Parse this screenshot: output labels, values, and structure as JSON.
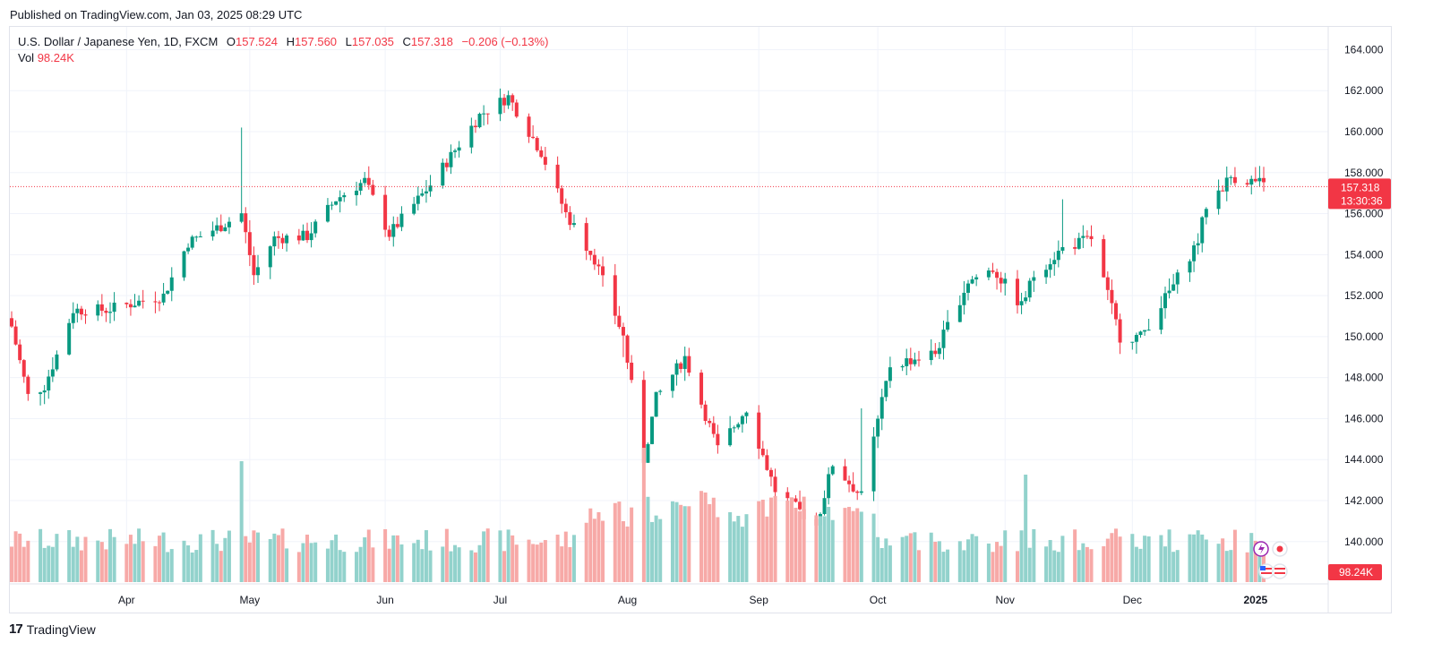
{
  "header": {
    "published": "Published on TradingView.com, Jan 03, 2025 08:29 UTC"
  },
  "legend": {
    "symbol": "U.S. Dollar / Japanese Yen, 1D, FXCM",
    "open_label": "O",
    "open": "157.524",
    "high_label": "H",
    "high": "157.560",
    "low_label": "L",
    "low": "157.035",
    "close_label": "C",
    "close": "157.318",
    "change": "−0.206 (−0.13%)",
    "vol_label": "Vol",
    "vol": "98.24K"
  },
  "last_price": {
    "value": "157.318",
    "countdown": "13:30:36",
    "color": "#f23645"
  },
  "volume_badge": {
    "value": "98.24K",
    "color": "#f23645"
  },
  "footer": {
    "brand": "TradingView",
    "logo_mark": "17"
  },
  "colors": {
    "up": "#089981",
    "down": "#f23645",
    "vol_up": "#92d2cc",
    "vol_down": "#f7a9a7",
    "grid": "#f0f3fa",
    "axis_text": "#131722"
  },
  "chart_data": {
    "type": "candlestick",
    "title": "U.S. Dollar / Japanese Yen, 1D, FXCM",
    "y_ticks": [
      140,
      142,
      144,
      146,
      148,
      150,
      152,
      154,
      156,
      158,
      160,
      162,
      164
    ],
    "y_tick_labels": [
      "140.000",
      "142.000",
      "144.000",
      "146.000",
      "148.000",
      "150.000",
      "152.000",
      "154.000",
      "156.000",
      "158.000",
      "160.000",
      "162.000",
      "164.000"
    ],
    "ylim": [
      137.5,
      164.5
    ],
    "x_ticks": [
      {
        "label": "Apr",
        "date": "2024-04-01"
      },
      {
        "label": "May",
        "date": "2024-05-01"
      },
      {
        "label": "Jun",
        "date": "2024-06-03"
      },
      {
        "label": "Jul",
        "date": "2024-07-01"
      },
      {
        "label": "Aug",
        "date": "2024-08-01"
      },
      {
        "label": "Sep",
        "date": "2024-09-02"
      },
      {
        "label": "Oct",
        "date": "2024-10-01"
      },
      {
        "label": "Nov",
        "date": "2024-11-01"
      },
      {
        "label": "Dec",
        "date": "2024-12-02"
      },
      {
        "label": "2025",
        "date": "2025-01-01"
      }
    ],
    "date_range": [
      "2024-03-04",
      "2025-01-03"
    ],
    "close_anchors": [
      [
        "2024-03-04",
        150.5
      ],
      [
        "2024-03-08",
        147.1
      ],
      [
        "2024-03-12",
        147.6
      ],
      [
        "2024-03-15",
        149.1
      ],
      [
        "2024-03-19",
        151.3
      ],
      [
        "2024-03-27",
        151.3
      ],
      [
        "2024-04-10",
        152.0
      ],
      [
        "2024-04-16",
        154.6
      ],
      [
        "2024-04-24",
        155.4
      ],
      [
        "2024-04-29",
        156.0
      ],
      [
        "2024-05-02",
        153.0
      ],
      [
        "2024-05-07",
        154.8
      ],
      [
        "2024-05-15",
        154.9
      ],
      [
        "2024-05-22",
        156.7
      ],
      [
        "2024-05-29",
        157.6
      ],
      [
        "2024-06-04",
        155.0
      ],
      [
        "2024-06-14",
        157.4
      ],
      [
        "2024-06-26",
        160.8
      ],
      [
        "2024-07-03",
        161.7
      ],
      [
        "2024-07-11",
        159.0
      ],
      [
        "2024-07-17",
        156.0
      ],
      [
        "2024-07-24",
        153.8
      ],
      [
        "2024-07-31",
        150.0
      ],
      [
        "2024-08-05",
        144.0
      ],
      [
        "2024-08-08",
        147.0
      ],
      [
        "2024-08-15",
        149.0
      ],
      [
        "2024-08-23",
        144.5
      ],
      [
        "2024-08-30",
        146.5
      ],
      [
        "2024-09-06",
        142.5
      ],
      [
        "2024-09-16",
        140.8
      ],
      [
        "2024-09-20",
        143.8
      ],
      [
        "2024-09-27",
        142.2
      ],
      [
        "2024-10-04",
        148.6
      ],
      [
        "2024-10-15",
        149.2
      ],
      [
        "2024-10-23",
        152.7
      ],
      [
        "2024-10-29",
        153.3
      ],
      [
        "2024-11-05",
        151.5
      ],
      [
        "2024-11-08",
        153.0
      ],
      [
        "2024-11-15",
        154.3
      ],
      [
        "2024-11-22",
        154.8
      ],
      [
        "2024-11-29",
        150.0
      ],
      [
        "2024-12-04",
        150.0
      ],
      [
        "2024-12-12",
        152.5
      ],
      [
        "2024-12-18",
        154.7
      ],
      [
        "2024-12-20",
        156.4
      ],
      [
        "2024-12-26",
        157.8
      ],
      [
        "2025-01-02",
        157.5
      ],
      [
        "2025-01-03",
        157.318
      ]
    ],
    "high_spikes": [
      [
        "2024-04-29",
        160.2
      ],
      [
        "2024-09-27",
        146.5
      ],
      [
        "2024-11-15",
        156.7
      ]
    ],
    "low_spikes": [
      [
        "2024-07-31",
        149.0
      ],
      [
        "2024-08-05",
        141.7
      ],
      [
        "2024-09-16",
        139.6
      ]
    ],
    "volume_spikes": [
      [
        "2024-04-29",
        0.9
      ],
      [
        "2024-08-05",
        1.0
      ],
      [
        "2024-11-06",
        0.8
      ]
    ],
    "last_close": 157.318,
    "last_volume": "98.24K"
  }
}
